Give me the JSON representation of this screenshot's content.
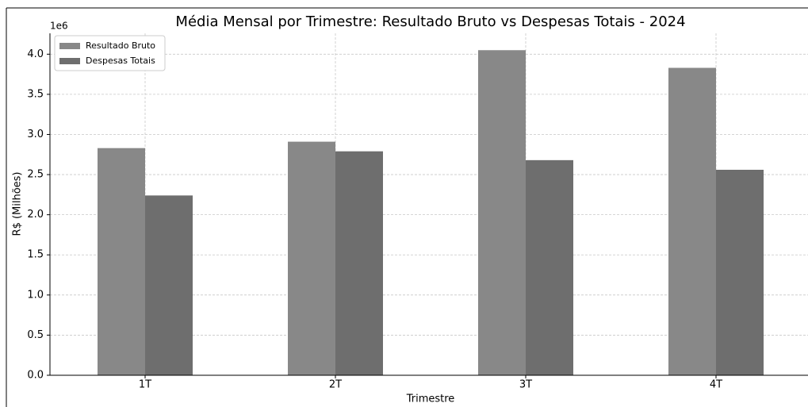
{
  "chart_data": {
    "type": "bar",
    "title": "Média Mensal por Trimestre: Resultado Bruto vs Despesas Totais - 2024",
    "x_label": "Trimestre",
    "y_label": "R$ (Milhões)",
    "y_offset_label": "1e6",
    "categories": [
      "1T",
      "2T",
      "3T",
      "4T"
    ],
    "series": [
      {
        "name": "Resultado Bruto",
        "color": "#888888",
        "values": [
          2.83,
          2.91,
          4.05,
          3.83
        ]
      },
      {
        "name": "Despesas Totais",
        "color": "#6e6e6e",
        "values": [
          2.24,
          2.79,
          2.68,
          2.56
        ]
      }
    ],
    "ylim": [
      0,
      4.26
    ],
    "yticks": [
      {
        "value": 0,
        "label": "0.0"
      },
      {
        "value": 0.5,
        "label": "0.5"
      },
      {
        "value": 1,
        "label": "1.0"
      },
      {
        "value": 1.5,
        "label": "1.5"
      },
      {
        "value": 2,
        "label": "2.0"
      },
      {
        "value": 2.5,
        "label": "2.5"
      },
      {
        "value": 3,
        "label": "3.0"
      },
      {
        "value": 3.5,
        "label": "3.5"
      },
      {
        "value": 4,
        "label": "4.0"
      }
    ],
    "grid": true,
    "legend": "upper left"
  }
}
